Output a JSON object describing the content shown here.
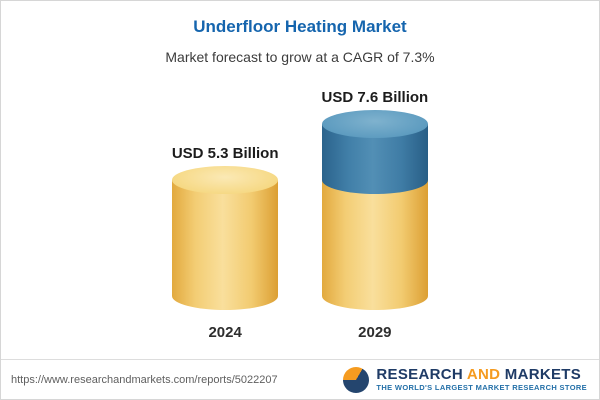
{
  "header": {
    "title": "Underfloor Heating Market",
    "subtitle": "Market forecast to grow at a CAGR of 7.3%"
  },
  "chart_data": {
    "type": "bar",
    "variant": "3d-cylinder",
    "title": "Underfloor Heating Market",
    "subtitle": "Market forecast to grow at a CAGR of 7.3%",
    "cagr_percent": 7.3,
    "unit": "USD Billion",
    "categories": [
      "2024",
      "2029"
    ],
    "values": [
      5.3,
      7.6
    ],
    "value_labels": [
      "USD 5.3 Billion",
      "USD 7.6 Billion"
    ],
    "legend_position": "none",
    "grid": false,
    "colors": {
      "base_segment": "#F3CC70",
      "growth_segment": "#3E7CA4",
      "title_text": "#1565AE"
    }
  },
  "footer": {
    "url": "https://www.researchandmarkets.com/reports/5022207",
    "brand": {
      "word1": "RESEARCH",
      "word2": "AND",
      "word3": "MARKETS",
      "tagline": "THE WORLD'S LARGEST MARKET RESEARCH STORE",
      "navy": "#1F3B66",
      "orange": "#F59B20"
    }
  }
}
